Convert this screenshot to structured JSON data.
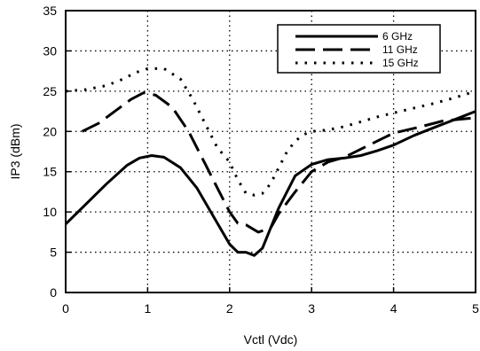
{
  "chart_data": {
    "type": "line",
    "xlabel": "Vctl (Vdc)",
    "ylabel": "IP3 (dBm)",
    "xlim": [
      0,
      5
    ],
    "ylim": [
      0,
      35
    ],
    "xticks": [
      0,
      1,
      2,
      3,
      4,
      5
    ],
    "yticks": [
      0,
      5,
      10,
      15,
      20,
      25,
      30,
      35
    ],
    "grid": "dotted",
    "legend_position": "top-right",
    "series": [
      {
        "name": "6 GHz",
        "style": "solid",
        "x": [
          0,
          0.25,
          0.5,
          0.75,
          0.9,
          1.05,
          1.2,
          1.4,
          1.6,
          1.8,
          2.0,
          2.1,
          2.2,
          2.3,
          2.4,
          2.5,
          2.6,
          2.8,
          3.0,
          3.2,
          3.4,
          3.6,
          3.8,
          4.0,
          4.25,
          4.5,
          4.75,
          5.0
        ],
        "y": [
          8.5,
          11,
          13.5,
          15.8,
          16.7,
          17.0,
          16.8,
          15.5,
          13,
          9.5,
          6,
          5,
          5,
          4.6,
          5.5,
          8,
          10.5,
          14.5,
          15.9,
          16.5,
          16.7,
          17.0,
          17.6,
          18.3,
          19.5,
          20.5,
          21.5,
          22.5
        ]
      },
      {
        "name": "11 GHz",
        "style": "dashed",
        "x": [
          0.2,
          0.4,
          0.6,
          0.8,
          0.95,
          1.1,
          1.3,
          1.5,
          1.7,
          1.85,
          2.0,
          2.1,
          2.2,
          2.35,
          2.5,
          2.6,
          2.8,
          3.0,
          3.2,
          3.4,
          3.6,
          3.8,
          4.0,
          4.3,
          4.6,
          5.0
        ],
        "y": [
          20,
          21,
          22.5,
          24,
          24.8,
          24.5,
          23,
          20,
          16,
          13,
          10,
          8.6,
          8.4,
          7.5,
          8,
          9.8,
          12.5,
          15,
          16.2,
          16.8,
          17.8,
          18.8,
          19.8,
          20.5,
          21.3,
          21.7
        ]
      },
      {
        "name": "15 GHz",
        "style": "dotted",
        "x": [
          0,
          0.25,
          0.5,
          0.7,
          0.85,
          1.0,
          1.2,
          1.4,
          1.55,
          1.7,
          1.85,
          2.0,
          2.1,
          2.2,
          2.3,
          2.4,
          2.5,
          2.6,
          2.7,
          2.8,
          2.9,
          3.0,
          3.2,
          3.4,
          3.6,
          3.8,
          4.0,
          4.25,
          4.5,
          4.75,
          5.0
        ],
        "y": [
          25,
          25.2,
          25.7,
          26.5,
          27.3,
          27.8,
          27.8,
          26.5,
          24,
          21,
          18,
          16.2,
          14,
          12.3,
          12.1,
          12.3,
          13.5,
          15.5,
          17.5,
          18.8,
          19.6,
          20,
          20.2,
          20.6,
          21.2,
          21.8,
          22.3,
          22.9,
          23.5,
          24.2,
          25
        ]
      }
    ]
  }
}
